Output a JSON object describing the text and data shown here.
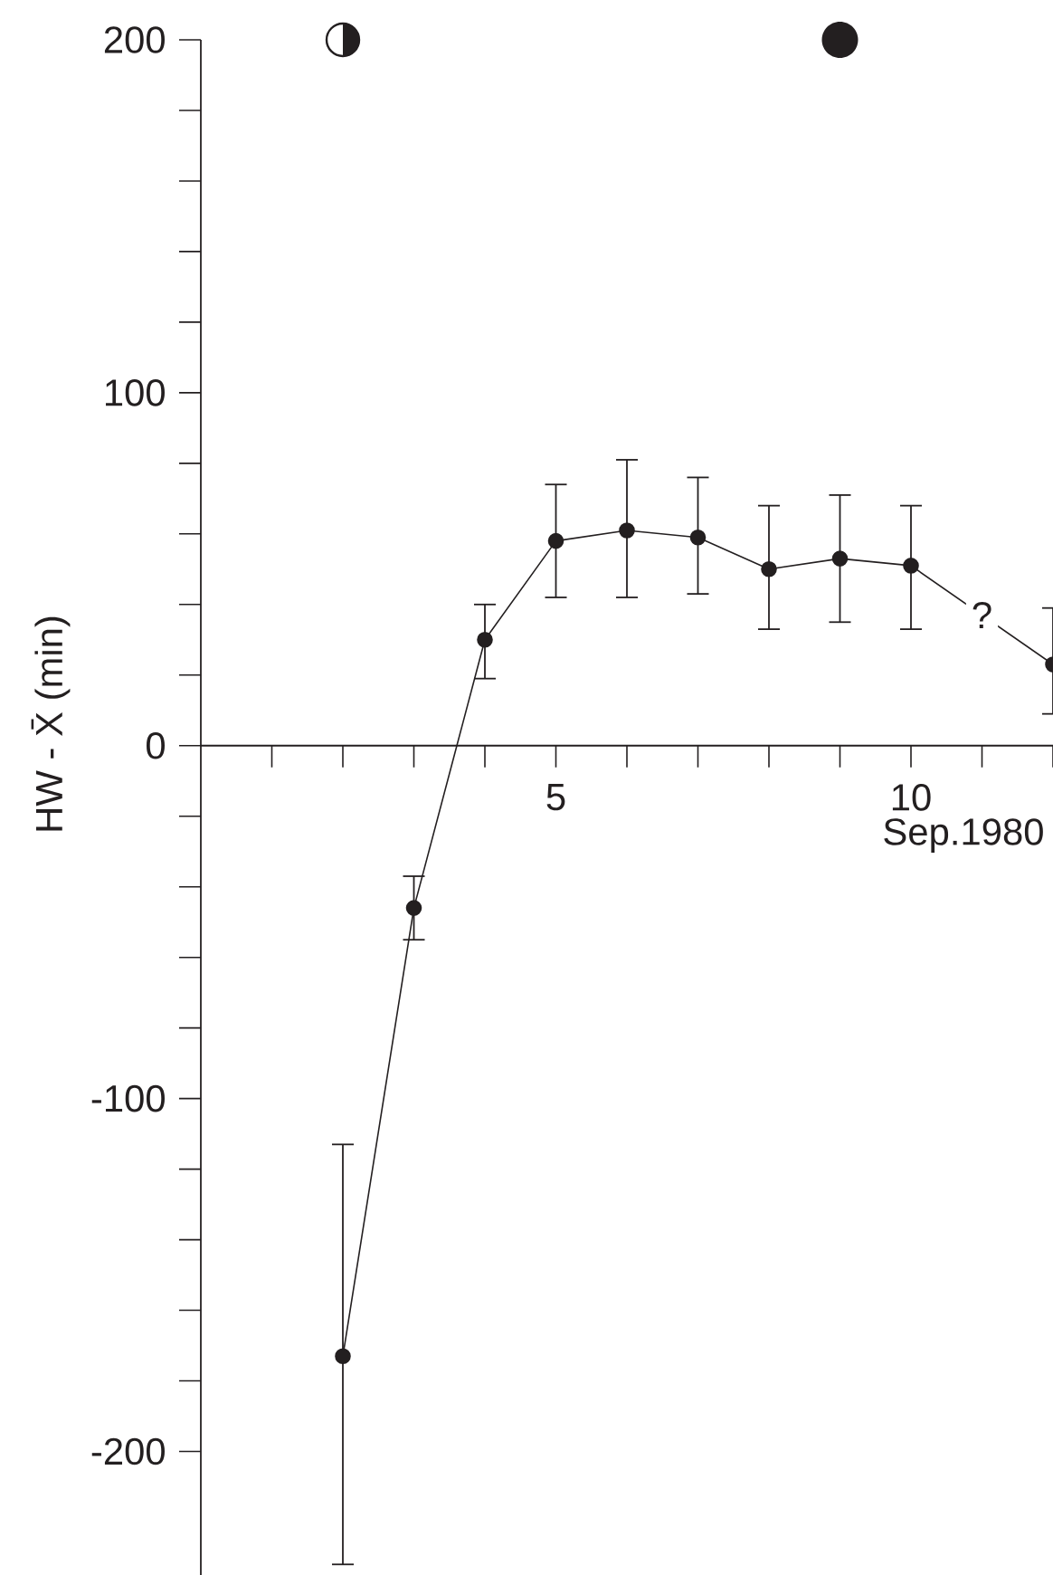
{
  "chart_data": {
    "type": "line",
    "xlabel": "Sep.1980",
    "ylabel": "HW - X̄ (min)",
    "x": [
      2,
      3,
      4,
      5,
      6,
      7,
      8,
      9,
      10,
      12
    ],
    "values": [
      -173,
      -46,
      30,
      58,
      61,
      59,
      50,
      53,
      51,
      23
    ],
    "errors": [
      [
        -232,
        -113
      ],
      [
        -55,
        -37
      ],
      [
        19,
        40
      ],
      [
        42,
        74
      ],
      [
        42,
        81
      ],
      [
        43,
        76
      ],
      [
        33,
        68
      ],
      [
        35,
        71
      ],
      [
        33,
        68
      ],
      [
        9,
        39
      ]
    ],
    "color": "#231f20",
    "marker": "circle",
    "line_style": "solid",
    "xlim": [
      0,
      12
    ],
    "ylim": [
      -235,
      200
    ],
    "xticks": [
      {
        "value": 1,
        "label": null
      },
      {
        "value": 2,
        "label": null
      },
      {
        "value": 3,
        "label": null
      },
      {
        "value": 4,
        "label": null
      },
      5,
      {
        "value": 6,
        "label": null
      },
      {
        "value": 7,
        "label": null
      },
      {
        "value": 8,
        "label": null
      },
      {
        "value": 9,
        "label": null
      },
      10,
      {
        "value": 11,
        "label": null
      },
      {
        "value": 12,
        "label": null
      }
    ],
    "yticks": [
      -200,
      {
        "value": -180,
        "label": null
      },
      {
        "value": -160,
        "label": null
      },
      {
        "value": -140,
        "label": null
      },
      {
        "value": -120,
        "label": null
      },
      -100,
      {
        "value": -80,
        "label": null
      },
      {
        "value": -60,
        "label": null
      },
      {
        "value": -40,
        "label": null
      },
      {
        "value": -20,
        "label": null
      },
      0,
      {
        "value": 20,
        "label": null
      },
      {
        "value": 40,
        "label": null
      },
      {
        "value": 60,
        "label": null
      },
      {
        "value": 80,
        "label": null
      },
      100,
      {
        "value": 120,
        "label": null
      },
      {
        "value": 140,
        "label": null
      },
      {
        "value": 160,
        "label": null
      },
      {
        "value": 180,
        "label": null
      },
      200
    ],
    "annotations": [
      {
        "text": "?",
        "x": 11,
        "y": 37
      }
    ]
  }
}
